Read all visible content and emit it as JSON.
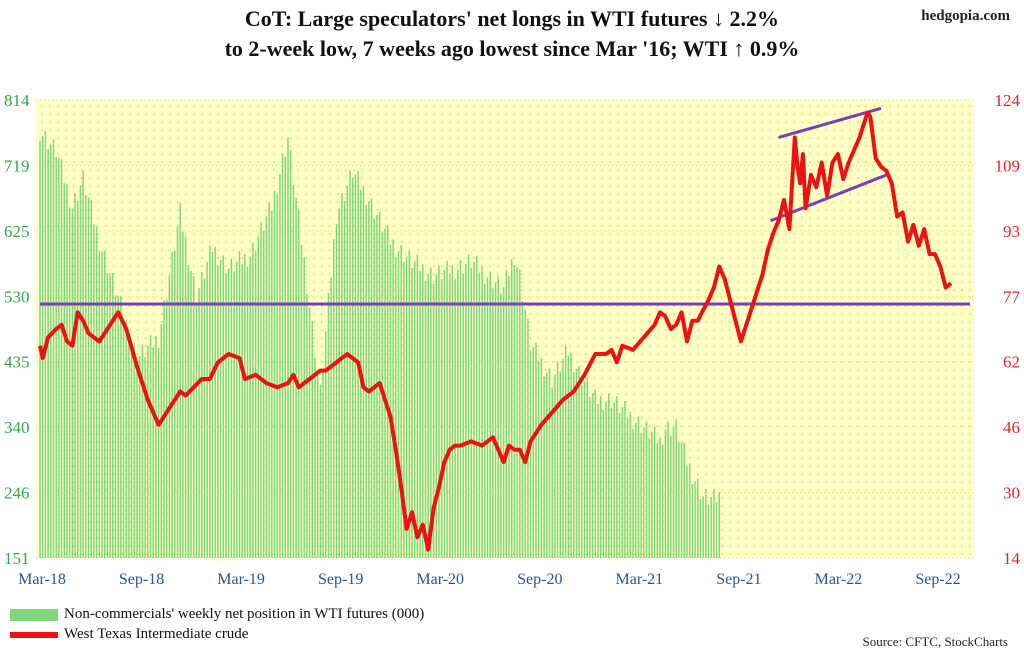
{
  "header": {
    "title_line1": "CoT: Large speculators' net longs in WTI futures ↓ 2.2%",
    "title_line2": "to 2-week low, 7 weeks ago lowest since Mar '16; WTI  ↑ 0.9%",
    "brand": "hedgopia.com",
    "source": "Source: CFTC, StockCharts"
  },
  "colors": {
    "net_position": "#7dd87d",
    "wti": "#ee1111",
    "trendline": "#7a3fb5",
    "left_axis": "#2ea84a",
    "right_axis": "#e8202a",
    "plot_background": "#ffff99"
  },
  "chart_data": {
    "type": "bar",
    "x_tick_labels": [
      "Mar-18",
      "Sep-18",
      "Mar-19",
      "Sep-19",
      "Mar-20",
      "Sep-20",
      "Mar-21",
      "Sep-21",
      "Mar-22",
      "Sep-22"
    ],
    "left_axis": {
      "ticks": [
        "814",
        "719",
        "625",
        "530",
        "435",
        "340",
        "246",
        "151"
      ],
      "ylim": [
        151,
        814
      ]
    },
    "right_axis": {
      "ticks": [
        "124",
        "109",
        "93",
        "77",
        "62",
        "46",
        "30",
        "14"
      ],
      "ylim": [
        14,
        124
      ]
    },
    "grid": "dotted",
    "legend_placement": "bottom-left",
    "series": [
      {
        "name": "Non-commercials' weekly net position in WTI futures (000)",
        "axis": "left",
        "kind": "bar",
        "anchors": [
          [
            0,
            770
          ],
          [
            6,
            740
          ],
          [
            12,
            660
          ],
          [
            16,
            700
          ],
          [
            22,
            610
          ],
          [
            28,
            540
          ],
          [
            36,
            440
          ],
          [
            44,
            470
          ],
          [
            52,
            650
          ],
          [
            58,
            530
          ],
          [
            64,
            600
          ],
          [
            70,
            570
          ],
          [
            78,
            590
          ],
          [
            86,
            660
          ],
          [
            92,
            760
          ],
          [
            98,
            580
          ],
          [
            104,
            390
          ],
          [
            110,
            650
          ],
          [
            116,
            710
          ],
          [
            122,
            670
          ],
          [
            130,
            610
          ],
          [
            138,
            580
          ],
          [
            146,
            560
          ],
          [
            154,
            570
          ],
          [
            160,
            580
          ],
          [
            166,
            560
          ],
          [
            172,
            540
          ],
          [
            176,
            590
          ],
          [
            178,
            560
          ],
          [
            182,
            460
          ],
          [
            190,
            410
          ],
          [
            196,
            450
          ],
          [
            200,
            420
          ],
          [
            206,
            380
          ],
          [
            212,
            380
          ],
          [
            218,
            360
          ],
          [
            224,
            340
          ],
          [
            230,
            320
          ],
          [
            232,
            340
          ],
          [
            236,
            340
          ],
          [
            240,
            290
          ],
          [
            246,
            240
          ],
          [
            250,
            235
          ],
          [
            252,
            240
          ]
        ]
      },
      {
        "name": "West Texas Intermediate crude",
        "axis": "right",
        "kind": "line",
        "points": [
          [
            0,
            65
          ],
          [
            1,
            62
          ],
          [
            3,
            67
          ],
          [
            6,
            69
          ],
          [
            8,
            70
          ],
          [
            10,
            66
          ],
          [
            12,
            65
          ],
          [
            14,
            73
          ],
          [
            16,
            71
          ],
          [
            18,
            68
          ],
          [
            22,
            66
          ],
          [
            26,
            70
          ],
          [
            29,
            73
          ],
          [
            32,
            69
          ],
          [
            36,
            60
          ],
          [
            40,
            52
          ],
          [
            44,
            46
          ],
          [
            48,
            50
          ],
          [
            52,
            54
          ],
          [
            54,
            53
          ],
          [
            57,
            55
          ],
          [
            60,
            57
          ],
          [
            63,
            57
          ],
          [
            66,
            61
          ],
          [
            70,
            63
          ],
          [
            74,
            62
          ],
          [
            76,
            57
          ],
          [
            80,
            58
          ],
          [
            84,
            56
          ],
          [
            88,
            55
          ],
          [
            92,
            56
          ],
          [
            94,
            58
          ],
          [
            96,
            55
          ],
          [
            100,
            57
          ],
          [
            104,
            59
          ],
          [
            106,
            59
          ],
          [
            108,
            60
          ],
          [
            112,
            62
          ],
          [
            114,
            63
          ],
          [
            118,
            61
          ],
          [
            120,
            55
          ],
          [
            122,
            54
          ],
          [
            126,
            56
          ],
          [
            128,
            52
          ],
          [
            130,
            48
          ],
          [
            132,
            40
          ],
          [
            134,
            31
          ],
          [
            136,
            21
          ],
          [
            138,
            25
          ],
          [
            140,
            19
          ],
          [
            142,
            22
          ],
          [
            144,
            16
          ],
          [
            146,
            26
          ],
          [
            148,
            31
          ],
          [
            150,
            37
          ],
          [
            152,
            40
          ],
          [
            154,
            41
          ],
          [
            156,
            41
          ],
          [
            160,
            42
          ],
          [
            164,
            41
          ],
          [
            168,
            43
          ],
          [
            170,
            40
          ],
          [
            172,
            37
          ],
          [
            174,
            41
          ],
          [
            176,
            40
          ],
          [
            178,
            40
          ],
          [
            180,
            37
          ],
          [
            182,
            42
          ],
          [
            186,
            46
          ],
          [
            190,
            49
          ],
          [
            194,
            52
          ],
          [
            198,
            54
          ],
          [
            202,
            58
          ],
          [
            206,
            63
          ],
          [
            210,
            63
          ],
          [
            212,
            64
          ],
          [
            214,
            61
          ],
          [
            216,
            65
          ],
          [
            220,
            64
          ],
          [
            224,
            67
          ],
          [
            228,
            70
          ],
          [
            230,
            73
          ],
          [
            232,
            72
          ],
          [
            234,
            69
          ],
          [
            236,
            70
          ],
          [
            238,
            73
          ],
          [
            240,
            66
          ],
          [
            242,
            71
          ],
          [
            244,
            71
          ],
          [
            248,
            76
          ],
          [
            250,
            79
          ],
          [
            252,
            84
          ],
          [
            254,
            81
          ],
          [
            256,
            76
          ],
          [
            258,
            71
          ],
          [
            260,
            66
          ],
          [
            262,
            70
          ],
          [
            264,
            74
          ],
          [
            266,
            78
          ],
          [
            268,
            82
          ],
          [
            270,
            88
          ],
          [
            272,
            92
          ],
          [
            274,
            95
          ],
          [
            276,
            100
          ],
          [
            278,
            93
          ],
          [
            280,
            115
          ],
          [
            281,
            108
          ],
          [
            282,
            104
          ],
          [
            283,
            111
          ],
          [
            284,
            98
          ],
          [
            286,
            106
          ],
          [
            288,
            103
          ],
          [
            290,
            109
          ],
          [
            292,
            101
          ],
          [
            294,
            109
          ],
          [
            296,
            111
          ],
          [
            298,
            105
          ],
          [
            300,
            109
          ],
          [
            302,
            112
          ],
          [
            304,
            115
          ],
          [
            306,
            119
          ],
          [
            307,
            121
          ],
          [
            308,
            120
          ],
          [
            310,
            110
          ],
          [
            312,
            108
          ],
          [
            314,
            107
          ],
          [
            316,
            104
          ],
          [
            318,
            96
          ],
          [
            320,
            97
          ],
          [
            322,
            90
          ],
          [
            324,
            94
          ],
          [
            326,
            89
          ],
          [
            328,
            93
          ],
          [
            330,
            87
          ],
          [
            332,
            87
          ],
          [
            334,
            84
          ],
          [
            336,
            79
          ],
          [
            338,
            80
          ]
        ]
      }
    ],
    "trendlines": [
      {
        "axis": "right",
        "points": [
          [
            0,
            75
          ],
          [
            345,
            75
          ]
        ]
      },
      {
        "axis": "right",
        "points": [
          [
            274,
            115
          ],
          [
            312,
            122
          ]
        ]
      },
      {
        "axis": "right",
        "points": [
          [
            271,
            95
          ],
          [
            314,
            106
          ]
        ]
      }
    ]
  }
}
